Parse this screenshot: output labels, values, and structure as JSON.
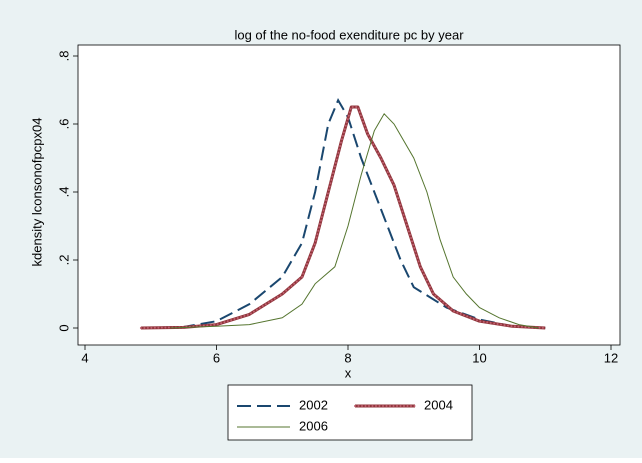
{
  "chart_data": {
    "type": "line",
    "title": "log of the no-food exenditure pc by year",
    "xlabel": "x",
    "ylabel": "kdensity lconsonofpcpx04",
    "xlim": [
      4,
      12
    ],
    "xticks": [
      4,
      6,
      8,
      10,
      12
    ],
    "ylim": [
      0,
      0.8
    ],
    "yticks": [
      0,
      {
        "value": 0.2,
        "label": ".2"
      },
      {
        "value": 0.4,
        "label": ".4"
      },
      {
        "value": 0.6,
        "label": ".6"
      },
      {
        "value": 0.8,
        "label": ".8"
      }
    ],
    "grid": false,
    "legend_position": "bottom",
    "series": [
      {
        "name": "2002",
        "color": "#1a476f",
        "style": "dashed",
        "x": [
          4.85,
          5.5,
          6.0,
          6.5,
          7.0,
          7.3,
          7.5,
          7.7,
          7.85,
          8.0,
          8.2,
          8.5,
          8.8,
          9.0,
          9.5,
          10.0,
          10.5,
          11.0
        ],
        "values": [
          0,
          0.003,
          0.02,
          0.07,
          0.15,
          0.25,
          0.4,
          0.6,
          0.67,
          0.62,
          0.5,
          0.35,
          0.2,
          0.12,
          0.06,
          0.025,
          0.005,
          0
        ]
      },
      {
        "name": "2004",
        "color": "#90353b",
        "style": "dotted",
        "x": [
          4.85,
          5.5,
          6.0,
          6.5,
          7.0,
          7.3,
          7.5,
          7.7,
          7.9,
          8.05,
          8.15,
          8.3,
          8.5,
          8.7,
          8.9,
          9.1,
          9.3,
          9.6,
          10.0,
          10.5,
          11.0
        ],
        "values": [
          0,
          0.002,
          0.01,
          0.04,
          0.1,
          0.15,
          0.25,
          0.4,
          0.55,
          0.65,
          0.65,
          0.57,
          0.5,
          0.42,
          0.3,
          0.18,
          0.1,
          0.05,
          0.02,
          0.005,
          0
        ]
      },
      {
        "name": "2006",
        "color": "#55752f",
        "style": "solid",
        "x": [
          5.3,
          6.0,
          6.5,
          7.0,
          7.3,
          7.5,
          7.8,
          8.0,
          8.2,
          8.4,
          8.55,
          8.7,
          9.0,
          9.2,
          9.4,
          9.6,
          9.8,
          10.0,
          10.3,
          10.6,
          10.9
        ],
        "values": [
          0,
          0.005,
          0.01,
          0.03,
          0.07,
          0.13,
          0.18,
          0.3,
          0.45,
          0.58,
          0.63,
          0.6,
          0.5,
          0.4,
          0.26,
          0.15,
          0.1,
          0.06,
          0.03,
          0.01,
          0
        ]
      }
    ]
  }
}
